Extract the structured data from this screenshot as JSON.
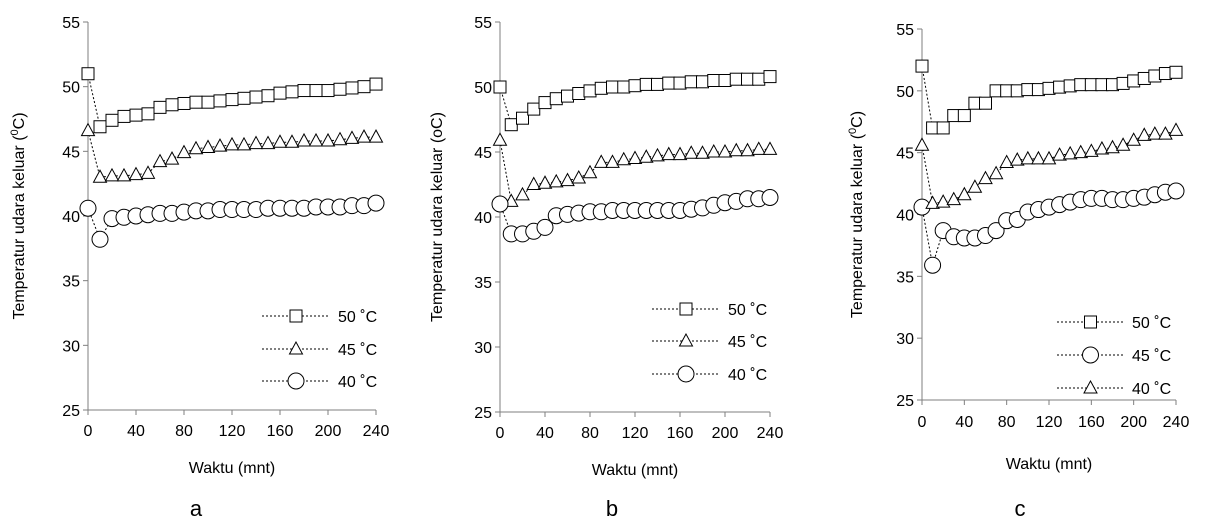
{
  "chart_data": [
    {
      "type": "line",
      "panel_label": "a",
      "xlabel": "Waktu (mnt)",
      "ylabel_main": "Temperatur udara keluar (",
      "ylabel_sup": "0",
      "ylabel_tail": "C)",
      "xlim": [
        0,
        240
      ],
      "ylim": [
        25,
        55
      ],
      "xticks": [
        "0",
        "40",
        "80",
        "120",
        "160",
        "200",
        "240"
      ],
      "yticks": [
        "25",
        "30",
        "35",
        "40",
        "45",
        "50",
        "55"
      ],
      "grid": false,
      "legend_position": "bottom-right",
      "x": [
        0,
        10,
        20,
        30,
        40,
        50,
        60,
        70,
        80,
        90,
        100,
        110,
        120,
        130,
        140,
        150,
        160,
        170,
        180,
        190,
        200,
        210,
        220,
        230,
        240
      ],
      "series": [
        {
          "name": "50  ˚C",
          "marker": "square",
          "values": [
            51.0,
            46.9,
            47.4,
            47.7,
            47.8,
            47.9,
            48.4,
            48.6,
            48.7,
            48.8,
            48.8,
            48.9,
            49.0,
            49.1,
            49.2,
            49.3,
            49.5,
            49.6,
            49.7,
            49.7,
            49.7,
            49.8,
            49.9,
            50.0,
            50.2
          ]
        },
        {
          "name": "45 ˚C",
          "marker": "triangle",
          "values": [
            46.6,
            43.0,
            43.1,
            43.1,
            43.2,
            43.3,
            44.2,
            44.4,
            44.9,
            45.2,
            45.3,
            45.4,
            45.5,
            45.5,
            45.6,
            45.6,
            45.7,
            45.7,
            45.8,
            45.8,
            45.8,
            45.9,
            46.0,
            46.1,
            46.1
          ]
        },
        {
          "name": "40 ˚C",
          "marker": "circle",
          "values": [
            40.6,
            38.2,
            39.8,
            39.9,
            40.0,
            40.1,
            40.2,
            40.2,
            40.3,
            40.4,
            40.4,
            40.5,
            40.5,
            40.5,
            40.5,
            40.6,
            40.6,
            40.6,
            40.6,
            40.7,
            40.7,
            40.7,
            40.8,
            40.8,
            41.0
          ]
        }
      ]
    },
    {
      "type": "line",
      "panel_label": "b",
      "xlabel": "Waktu (mnt)",
      "ylabel_main": "Temperatur udara keluar (oC)",
      "ylabel_sup": "",
      "ylabel_tail": "",
      "xlim": [
        0,
        240
      ],
      "ylim": [
        25,
        55
      ],
      "xticks": [
        "0",
        "40",
        "80",
        "120",
        "160",
        "200",
        "240"
      ],
      "yticks": [
        "25",
        "30",
        "35",
        "40",
        "45",
        "50",
        "55"
      ],
      "grid": false,
      "legend_position": "bottom-right",
      "x": [
        0,
        10,
        20,
        30,
        40,
        50,
        60,
        70,
        80,
        90,
        100,
        110,
        120,
        130,
        140,
        150,
        160,
        170,
        180,
        190,
        200,
        210,
        220,
        230,
        240
      ],
      "series": [
        {
          "name": "50  ˚C",
          "marker": "square",
          "values": [
            50.0,
            47.1,
            47.6,
            48.3,
            48.8,
            49.1,
            49.3,
            49.5,
            49.7,
            49.9,
            50.0,
            50.0,
            50.1,
            50.2,
            50.2,
            50.3,
            50.3,
            50.4,
            50.4,
            50.5,
            50.5,
            50.6,
            50.6,
            50.6,
            50.8
          ]
        },
        {
          "name": "45 ˚C",
          "marker": "triangle",
          "values": [
            45.9,
            41.2,
            41.7,
            42.5,
            42.6,
            42.7,
            42.8,
            43.0,
            43.4,
            44.2,
            44.2,
            44.4,
            44.5,
            44.6,
            44.7,
            44.8,
            44.8,
            44.9,
            44.9,
            45.0,
            45.0,
            45.1,
            45.1,
            45.2,
            45.2
          ]
        },
        {
          "name": "40 ˚C",
          "marker": "circle",
          "values": [
            41.0,
            38.7,
            38.7,
            38.9,
            39.2,
            40.1,
            40.2,
            40.3,
            40.4,
            40.4,
            40.5,
            40.5,
            40.5,
            40.5,
            40.5,
            40.5,
            40.5,
            40.6,
            40.7,
            40.9,
            41.1,
            41.2,
            41.4,
            41.4,
            41.5
          ]
        }
      ]
    },
    {
      "type": "line",
      "panel_label": "c",
      "xlabel": "Waktu (mnt)",
      "ylabel_main": "Temperatur udara keluar (",
      "ylabel_sup": "0",
      "ylabel_tail": "C)",
      "xlim": [
        0,
        240
      ],
      "ylim": [
        25,
        55
      ],
      "xticks": [
        "0",
        "40",
        "80",
        "120",
        "160",
        "200",
        "240"
      ],
      "yticks": [
        "25",
        "30",
        "35",
        "40",
        "45",
        "50",
        "55"
      ],
      "grid": false,
      "legend_position": "bottom-right",
      "x": [
        0,
        10,
        20,
        30,
        40,
        50,
        60,
        70,
        80,
        90,
        100,
        110,
        120,
        130,
        140,
        150,
        160,
        170,
        180,
        190,
        200,
        210,
        220,
        230,
        240
      ],
      "series": [
        {
          "name": "50  ˚C",
          "marker": "square",
          "values": [
            52.0,
            47.0,
            47.0,
            48.0,
            48.0,
            49.0,
            49.0,
            50.0,
            50.0,
            50.0,
            50.1,
            50.1,
            50.2,
            50.3,
            50.4,
            50.5,
            50.5,
            50.5,
            50.5,
            50.6,
            50.8,
            51.0,
            51.2,
            51.4,
            51.5
          ]
        },
        {
          "name": "45 ˚C",
          "marker": "circle",
          "values": [
            40.6,
            35.9,
            38.7,
            38.2,
            38.1,
            38.1,
            38.3,
            38.7,
            39.5,
            39.6,
            40.2,
            40.4,
            40.6,
            40.8,
            41.0,
            41.2,
            41.3,
            41.3,
            41.2,
            41.2,
            41.3,
            41.4,
            41.6,
            41.8,
            41.9
          ]
        },
        {
          "name": "40 ˚C",
          "marker": "triangle",
          "values": [
            45.6,
            40.9,
            41.0,
            41.2,
            41.6,
            42.2,
            42.9,
            43.3,
            44.2,
            44.4,
            44.5,
            44.5,
            44.5,
            44.8,
            44.9,
            45.0,
            45.1,
            45.3,
            45.4,
            45.6,
            46.0,
            46.4,
            46.5,
            46.5,
            46.8
          ]
        }
      ]
    }
  ]
}
